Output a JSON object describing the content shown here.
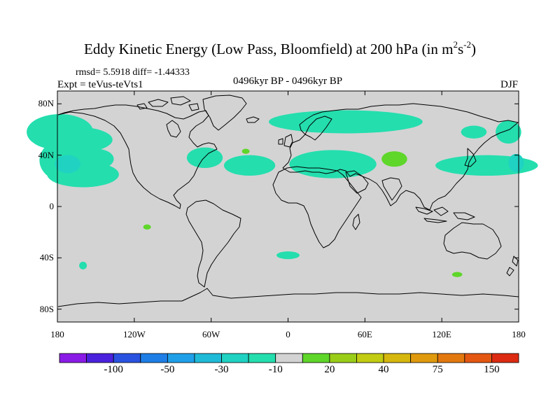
{
  "header": {
    "title_main": "Eddy Kinetic Energy (Low Pass, Bloomfield) at 200 hPa (in m",
    "title_sup1": "2",
    "title_mid": "s",
    "title_sup2": "-2",
    "title_end": ")",
    "stats": "rmsd= 5.5918 diff= -1.44333",
    "experiment": "Expt = teVus-teVts1",
    "period": "0496kyr BP - 0496kyr BP",
    "season": "DJF"
  },
  "map": {
    "projection": "cylindrical-equidistant",
    "lon_range": [
      -180,
      180
    ],
    "lat_range": [
      -90,
      90
    ],
    "land_color": "#d3d3d3",
    "coast_color": "#000000",
    "lat_labels": [
      "80N",
      "40N",
      "0",
      "40S",
      "80S"
    ],
    "lat_values": [
      80,
      40,
      0,
      -40,
      -80
    ],
    "lon_labels": [
      "180",
      "120W",
      "60W",
      "0",
      "60E",
      "120E",
      "180"
    ],
    "lon_values": [
      -180,
      -120,
      -60,
      0,
      60,
      120,
      180
    ]
  },
  "colorbar": {
    "colors": [
      "#8a1be6",
      "#4a22dd",
      "#2a52e0",
      "#1e7ee6",
      "#1f9fe8",
      "#1fbad8",
      "#1fd2c2",
      "#24deae",
      "#d3d3d3",
      "#5ed62a",
      "#9acd18",
      "#c2cc12",
      "#d6b70e",
      "#e09a0e",
      "#e3780f",
      "#e35712",
      "#dc2b12"
    ],
    "labels": [
      "-100",
      "-50",
      "-30",
      "-10",
      "20",
      "40",
      "75",
      "150"
    ],
    "label_boundaries": [
      2,
      4,
      6,
      8,
      10,
      12,
      14,
      16
    ]
  },
  "anomalies": [
    {
      "level": "-10",
      "color": "#24deae",
      "lon": -178,
      "lat": 58,
      "w": 26,
      "h": 14
    },
    {
      "level": "-10",
      "color": "#24deae",
      "lon": -165,
      "lat": 52,
      "w": 28,
      "h": 10
    },
    {
      "level": "-10",
      "color": "#24deae",
      "lon": -170,
      "lat": 36,
      "w": 24,
      "h": 18
    },
    {
      "level": "-10",
      "color": "#24deae",
      "lon": -160,
      "lat": 25,
      "w": 28,
      "h": 10
    },
    {
      "level": "-10",
      "color": "#24deae",
      "lon": -150,
      "lat": 37,
      "w": 14,
      "h": 8
    },
    {
      "level": "-10",
      "color": "#24deae",
      "lon": -65,
      "lat": 38,
      "w": 14,
      "h": 8
    },
    {
      "level": "-10",
      "color": "#24deae",
      "lon": -30,
      "lat": 32,
      "w": 20,
      "h": 8
    },
    {
      "level": "-10",
      "color": "#24deae",
      "lon": 45,
      "lat": 66,
      "w": 60,
      "h": 9
    },
    {
      "level": "-10",
      "color": "#24deae",
      "lon": 35,
      "lat": 33,
      "w": 34,
      "h": 11
    },
    {
      "level": "-10",
      "color": "#24deae",
      "lon": 145,
      "lat": 58,
      "w": 10,
      "h": 5
    },
    {
      "level": "-10",
      "color": "#24deae",
      "lon": 172,
      "lat": 58,
      "w": 10,
      "h": 9
    },
    {
      "level": "-10",
      "color": "#24deae",
      "lon": 155,
      "lat": 32,
      "w": 40,
      "h": 8
    },
    {
      "level": "-10",
      "color": "#24deae",
      "lon": -160,
      "lat": -46,
      "w": 3,
      "h": 3
    },
    {
      "level": "-10",
      "color": "#24deae",
      "lon": 0,
      "lat": -38,
      "w": 9,
      "h": 3
    },
    {
      "level": "-30",
      "color": "#1fd2c2",
      "lon": -172,
      "lat": 33,
      "w": 10,
      "h": 7
    },
    {
      "level": "-30",
      "color": "#1fd2c2",
      "lon": 178,
      "lat": 34,
      "w": 6,
      "h": 7
    },
    {
      "level": "20",
      "color": "#5ed62a",
      "lon": 83,
      "lat": 37,
      "w": 10,
      "h": 6
    },
    {
      "level": "20",
      "color": "#5ed62a",
      "lon": -33,
      "lat": 43,
      "w": 3,
      "h": 2
    },
    {
      "level": "20",
      "color": "#5ed62a",
      "lon": -110,
      "lat": -16,
      "w": 3,
      "h": 2
    },
    {
      "level": "20",
      "color": "#5ed62a",
      "lon": 132,
      "lat": -53,
      "w": 4,
      "h": 2
    }
  ]
}
